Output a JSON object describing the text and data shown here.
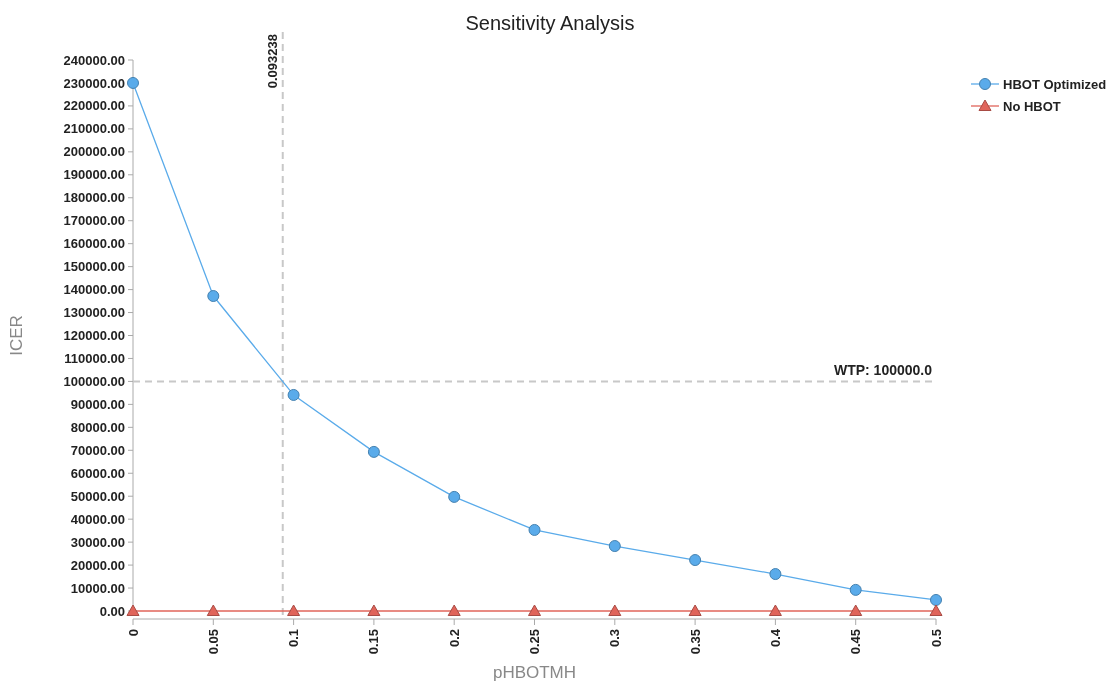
{
  "chart_data": {
    "type": "line",
    "title": "Sensitivity Analysis",
    "xlabel": "pHBOTMH",
    "ylabel": "ICER",
    "x": [
      0,
      0.05,
      0.1,
      0.15,
      0.2,
      0.25,
      0.3,
      0.35,
      0.4,
      0.45,
      0.5
    ],
    "series": [
      {
        "name": "HBOT Optimized",
        "color": "#5aabea",
        "marker": "circle",
        "values": [
          230000,
          137200,
          94100,
          69300,
          49700,
          35300,
          28300,
          22200,
          16100,
          9200,
          4800
        ]
      },
      {
        "name": "No HBOT",
        "color": "#e0645a",
        "marker": "triangle",
        "values": [
          0,
          0,
          0,
          0,
          0,
          0,
          0,
          0,
          0,
          0,
          0
        ]
      }
    ],
    "xlim": [
      0,
      0.5
    ],
    "xticks": [
      0,
      0.05,
      0.1,
      0.15,
      0.2,
      0.25,
      0.3,
      0.35,
      0.4,
      0.45,
      0.5
    ],
    "ylim": [
      0,
      240000
    ],
    "yticks": [
      {
        "value": 0,
        "label": "0.00"
      },
      {
        "value": 10000,
        "label": "10000.00"
      },
      {
        "value": 20000,
        "label": "20000.00"
      },
      {
        "value": 30000,
        "label": "30000.00"
      },
      {
        "value": 40000,
        "label": "40000.00"
      },
      {
        "value": 50000,
        "label": "50000.00"
      },
      {
        "value": 60000,
        "label": "60000.00"
      },
      {
        "value": 70000,
        "label": "70000.00"
      },
      {
        "value": 80000,
        "label": "80000.00"
      },
      {
        "value": 90000,
        "label": "90000.00"
      },
      {
        "value": 100000,
        "label": "100000.00"
      },
      {
        "value": 110000,
        "label": "110000.00"
      },
      {
        "value": 120000,
        "label": "120000.00"
      },
      {
        "value": 130000,
        "label": "130000.00"
      },
      {
        "value": 140000,
        "label": "140000.00"
      },
      {
        "value": 150000,
        "label": "150000.00"
      },
      {
        "value": 160000,
        "label": "160000.00"
      },
      {
        "value": 170000,
        "label": "170000.00"
      },
      {
        "value": 180000,
        "label": "180000.00"
      },
      {
        "value": 190000,
        "label": "190000.00"
      },
      {
        "value": 200000,
        "label": "200000.00"
      },
      {
        "value": 210000,
        "label": "210000.00"
      },
      {
        "value": 220000,
        "label": "220000.00"
      },
      {
        "value": 230000,
        "label": "230000.00"
      },
      {
        "value": 240000,
        "label": "240000.00"
      }
    ],
    "ref_lines": [
      {
        "axis": "x",
        "value": 0.093238,
        "label": "0.093238",
        "color": "#c8c8c8",
        "line_style": "dashed"
      },
      {
        "axis": "y",
        "value": 100000,
        "label": "WTP: 100000.0",
        "color": "#c8c8c8",
        "line_style": "dashed"
      }
    ],
    "grid": false,
    "legend": "top right",
    "line_style": "solid"
  }
}
